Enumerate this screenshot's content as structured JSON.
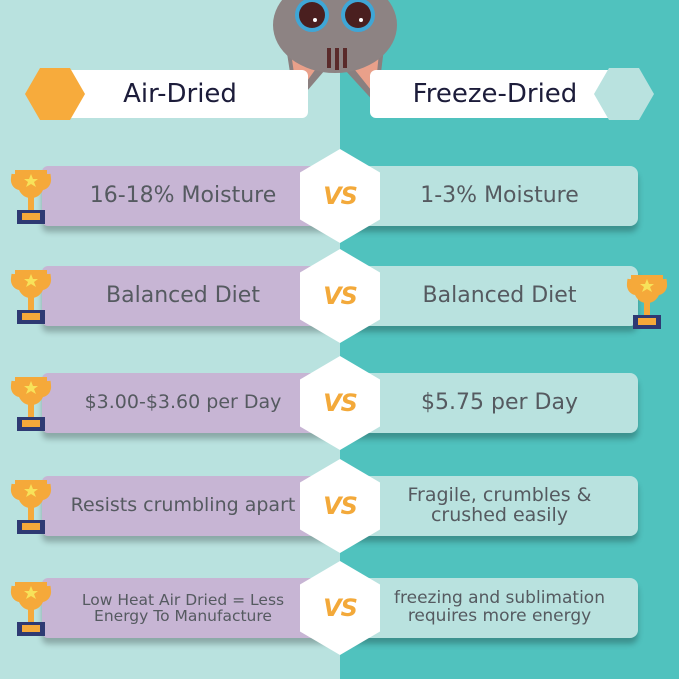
{
  "header": {
    "left_label": "Air-Dried",
    "right_label": "Freeze-Dried"
  },
  "vs_label": "VS",
  "colors": {
    "left_bg": "#b9e2df",
    "right_bg": "#50c2be",
    "left_bar": "#c7b5d4",
    "right_bar": "#b9e2df",
    "accent": "#f3a93a"
  },
  "rows": [
    {
      "left": "16-18% Moisture",
      "right": "1-3% Moisture",
      "trophy_left": true,
      "trophy_right": false
    },
    {
      "left": "Balanced Diet",
      "right": "Balanced Diet",
      "trophy_left": true,
      "trophy_right": true
    },
    {
      "left": "$3.00-$3.60 per Day",
      "right": "$5.75 per Day",
      "trophy_left": true,
      "trophy_right": false
    },
    {
      "left": "Resists crumbling apart",
      "right": "Fragile, crumbles & crushed easily",
      "trophy_left": true,
      "trophy_right": false
    },
    {
      "left": "Low Heat Air Dried = Less Energy To Manufacture",
      "right": "freezing and sublimation requires more energy",
      "trophy_left": true,
      "trophy_right": false
    }
  ]
}
